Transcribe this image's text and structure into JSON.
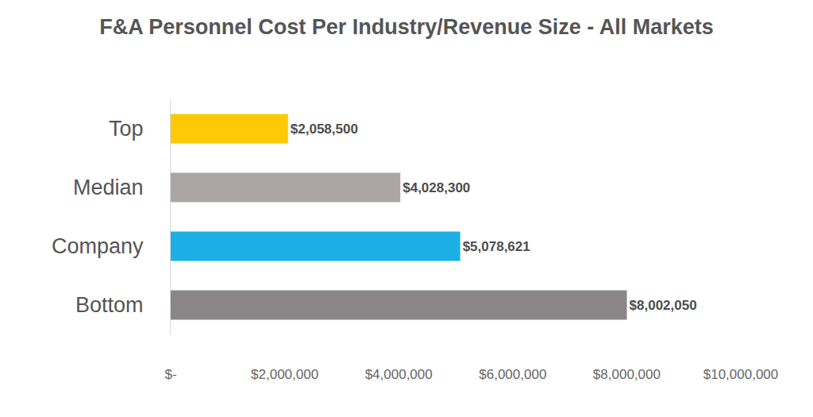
{
  "chart_data": {
    "type": "bar",
    "orientation": "horizontal",
    "title": "F&A Personnel Cost Per Industry/Revenue Size - All Markets",
    "categories": [
      "Top",
      "Median",
      "Company",
      "Bottom"
    ],
    "values": [
      2058500,
      4028300,
      5078621,
      8002050
    ],
    "value_labels": [
      "$2,058,500",
      "$4,028,300",
      "$5,078,621",
      "$8,002,050"
    ],
    "colors": [
      "#ffc907",
      "#aba6a5",
      "#1cafe5",
      "#8a8586"
    ],
    "data_labels": true,
    "xlim": [
      0,
      10000000
    ],
    "xticks": [
      {
        "value": 0,
        "label": "$-"
      },
      {
        "value": 2000000,
        "label": "$2,000,000"
      },
      {
        "value": 4000000,
        "label": "$4,000,000"
      },
      {
        "value": 6000000,
        "label": "$6,000,000"
      },
      {
        "value": 8000000,
        "label": "$8,000,000"
      },
      {
        "value": 10000000,
        "label": "$10,000,000"
      }
    ],
    "grid": false
  }
}
